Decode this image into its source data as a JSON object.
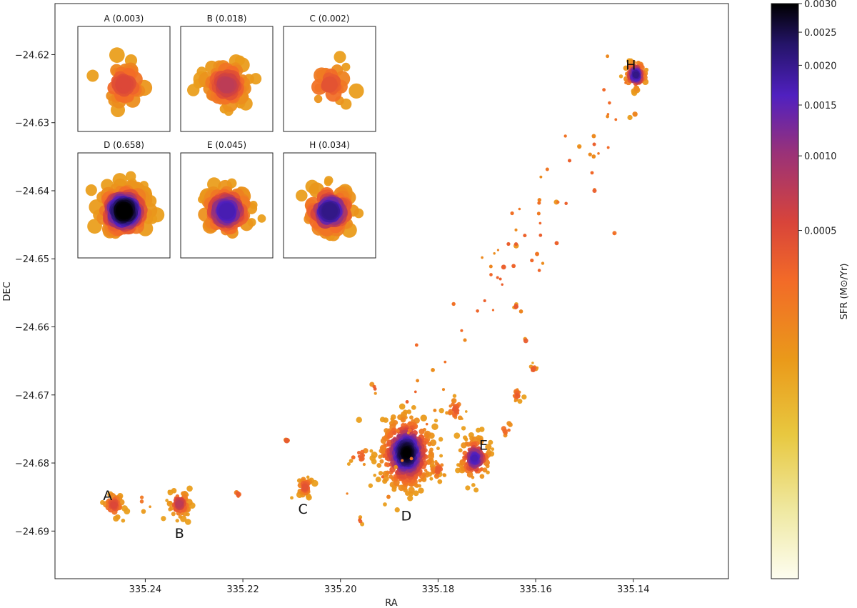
{
  "chart_data": {
    "type": "scatter",
    "title": "",
    "xlabel": "RA",
    "ylabel": "DEC",
    "xlim": [
      335.2585,
      335.1205
    ],
    "ylim": [
      -24.697,
      -24.6125
    ],
    "x_ticks": [
      335.24,
      335.22,
      335.2,
      335.18,
      335.16,
      335.14
    ],
    "x_tick_labels": [
      "335.24",
      "335.22",
      "335.20",
      "335.18",
      "335.16",
      "335.14"
    ],
    "y_ticks": [
      -24.62,
      -24.63,
      -24.64,
      -24.65,
      -24.66,
      -24.67,
      -24.68,
      -24.69
    ],
    "y_tick_labels": [
      "−24.62",
      "−24.63",
      "−24.64",
      "−24.65",
      "−24.66",
      "−24.67",
      "−24.68",
      "−24.69"
    ],
    "colorbar": {
      "label": "SFR (M⊙/Yr)",
      "vmin": 0.0,
      "vmax": 0.003,
      "ticks": [
        0.0005,
        0.001,
        0.0015,
        0.002,
        0.0025,
        0.003
      ],
      "tick_labels": [
        "0.0005",
        "0.0010",
        "0.0015",
        "0.0020",
        "0.0025",
        "0.0030"
      ],
      "colormap": [
        "#fdfdf0",
        "#efe8a0",
        "#e8c840",
        "#ea9a1a",
        "#f26a28",
        "#d8443a",
        "#9a3278",
        "#5020c0",
        "#241468",
        "#000000"
      ]
    },
    "regions": [
      {
        "name": "A",
        "ra": 335.2465,
        "dec": -24.6862,
        "sfr": "0.003",
        "peak": 0.33,
        "spread": 0.0011,
        "count": 60,
        "label_ra": 335.2477,
        "label_dec": -24.6847
      },
      {
        "name": "B",
        "ra": 335.233,
        "dec": -24.686,
        "sfr": "0.018",
        "peak": 0.42,
        "spread": 0.0012,
        "count": 110,
        "label_ra": 335.233,
        "label_dec": -24.6903
      },
      {
        "name": "C",
        "ra": 335.2073,
        "dec": -24.6835,
        "sfr": "0.002",
        "peak": 0.28,
        "spread": 0.0009,
        "count": 40,
        "label_ra": 335.2077,
        "label_dec": -24.6867
      },
      {
        "name": "D",
        "ra": 335.1865,
        "dec": -24.6785,
        "sfr": "0.658",
        "peak": 1.0,
        "spread": 0.003,
        "count": 900,
        "label_ra": 335.1865,
        "label_dec": -24.6877
      },
      {
        "name": "E",
        "ra": 335.1725,
        "dec": -24.6793,
        "sfr": "0.045",
        "peak": 0.7,
        "spread": 0.0017,
        "count": 200,
        "label_ra": 335.1707,
        "label_dec": -24.6773
      },
      {
        "name": "H",
        "ra": 335.1395,
        "dec": -24.623,
        "sfr": "0.034",
        "peak": 0.78,
        "spread": 0.0012,
        "count": 180,
        "label_ra": 335.1405,
        "label_dec": -24.6215
      }
    ],
    "insets": [
      {
        "title": "A (0.003)",
        "region": "A"
      },
      {
        "title": "B (0.018)",
        "region": "B"
      },
      {
        "title": "C (0.002)",
        "region": "C"
      },
      {
        "title": "D (0.658)",
        "region": "D"
      },
      {
        "title": "E (0.045)",
        "region": "E"
      },
      {
        "title": "H (0.034)",
        "region": "H"
      }
    ],
    "background_clumps": [
      {
        "ra": 335.1765,
        "dec": -24.6722,
        "n": 35,
        "spread": 0.0012
      },
      {
        "ra": 335.18,
        "dec": -24.681,
        "n": 30,
        "spread": 0.001
      },
      {
        "ra": 335.1638,
        "dec": -24.67,
        "n": 18,
        "spread": 0.0006
      },
      {
        "ra": 335.1605,
        "dec": -24.6662,
        "n": 10,
        "spread": 0.0004
      },
      {
        "ra": 335.164,
        "dec": -24.657,
        "n": 6,
        "spread": 0.0002
      },
      {
        "ra": 335.211,
        "dec": -24.6767,
        "n": 5,
        "spread": 0.0002
      },
      {
        "ra": 335.221,
        "dec": -24.6846,
        "n": 8,
        "spread": 0.0004
      },
      {
        "ra": 335.196,
        "dec": -24.679,
        "n": 12,
        "spread": 0.0012
      },
      {
        "ra": 335.196,
        "dec": -24.6885,
        "n": 5,
        "spread": 0.0003
      },
      {
        "ra": 335.166,
        "dec": -24.675,
        "n": 8,
        "spread": 0.0008
      },
      {
        "ra": 335.24,
        "dec": -24.6855,
        "n": 4,
        "spread": 0.001
      },
      {
        "ra": 335.162,
        "dec": -24.662,
        "n": 2,
        "spread": 0.0002
      },
      {
        "ra": 335.1555,
        "dec": -24.6418,
        "n": 2,
        "spread": 0.0002
      },
      {
        "ra": 335.148,
        "dec": -24.64,
        "n": 2,
        "spread": 0.0002
      },
      {
        "ra": 335.144,
        "dec": -24.6462,
        "n": 2,
        "spread": 0.0002
      },
      {
        "ra": 335.164,
        "dec": -24.6478,
        "n": 2,
        "spread": 0.0002
      },
      {
        "ra": 335.1665,
        "dec": -24.6512,
        "n": 2,
        "spread": 0.0002
      },
      {
        "ra": 335.151,
        "dec": -24.6338,
        "n": 2,
        "spread": 0.0002
      },
      {
        "ra": 335.14,
        "dec": -24.629,
        "n": 3,
        "spread": 0.0004
      },
      {
        "ra": 335.193,
        "dec": -24.669,
        "n": 6,
        "spread": 0.0006
      }
    ]
  }
}
